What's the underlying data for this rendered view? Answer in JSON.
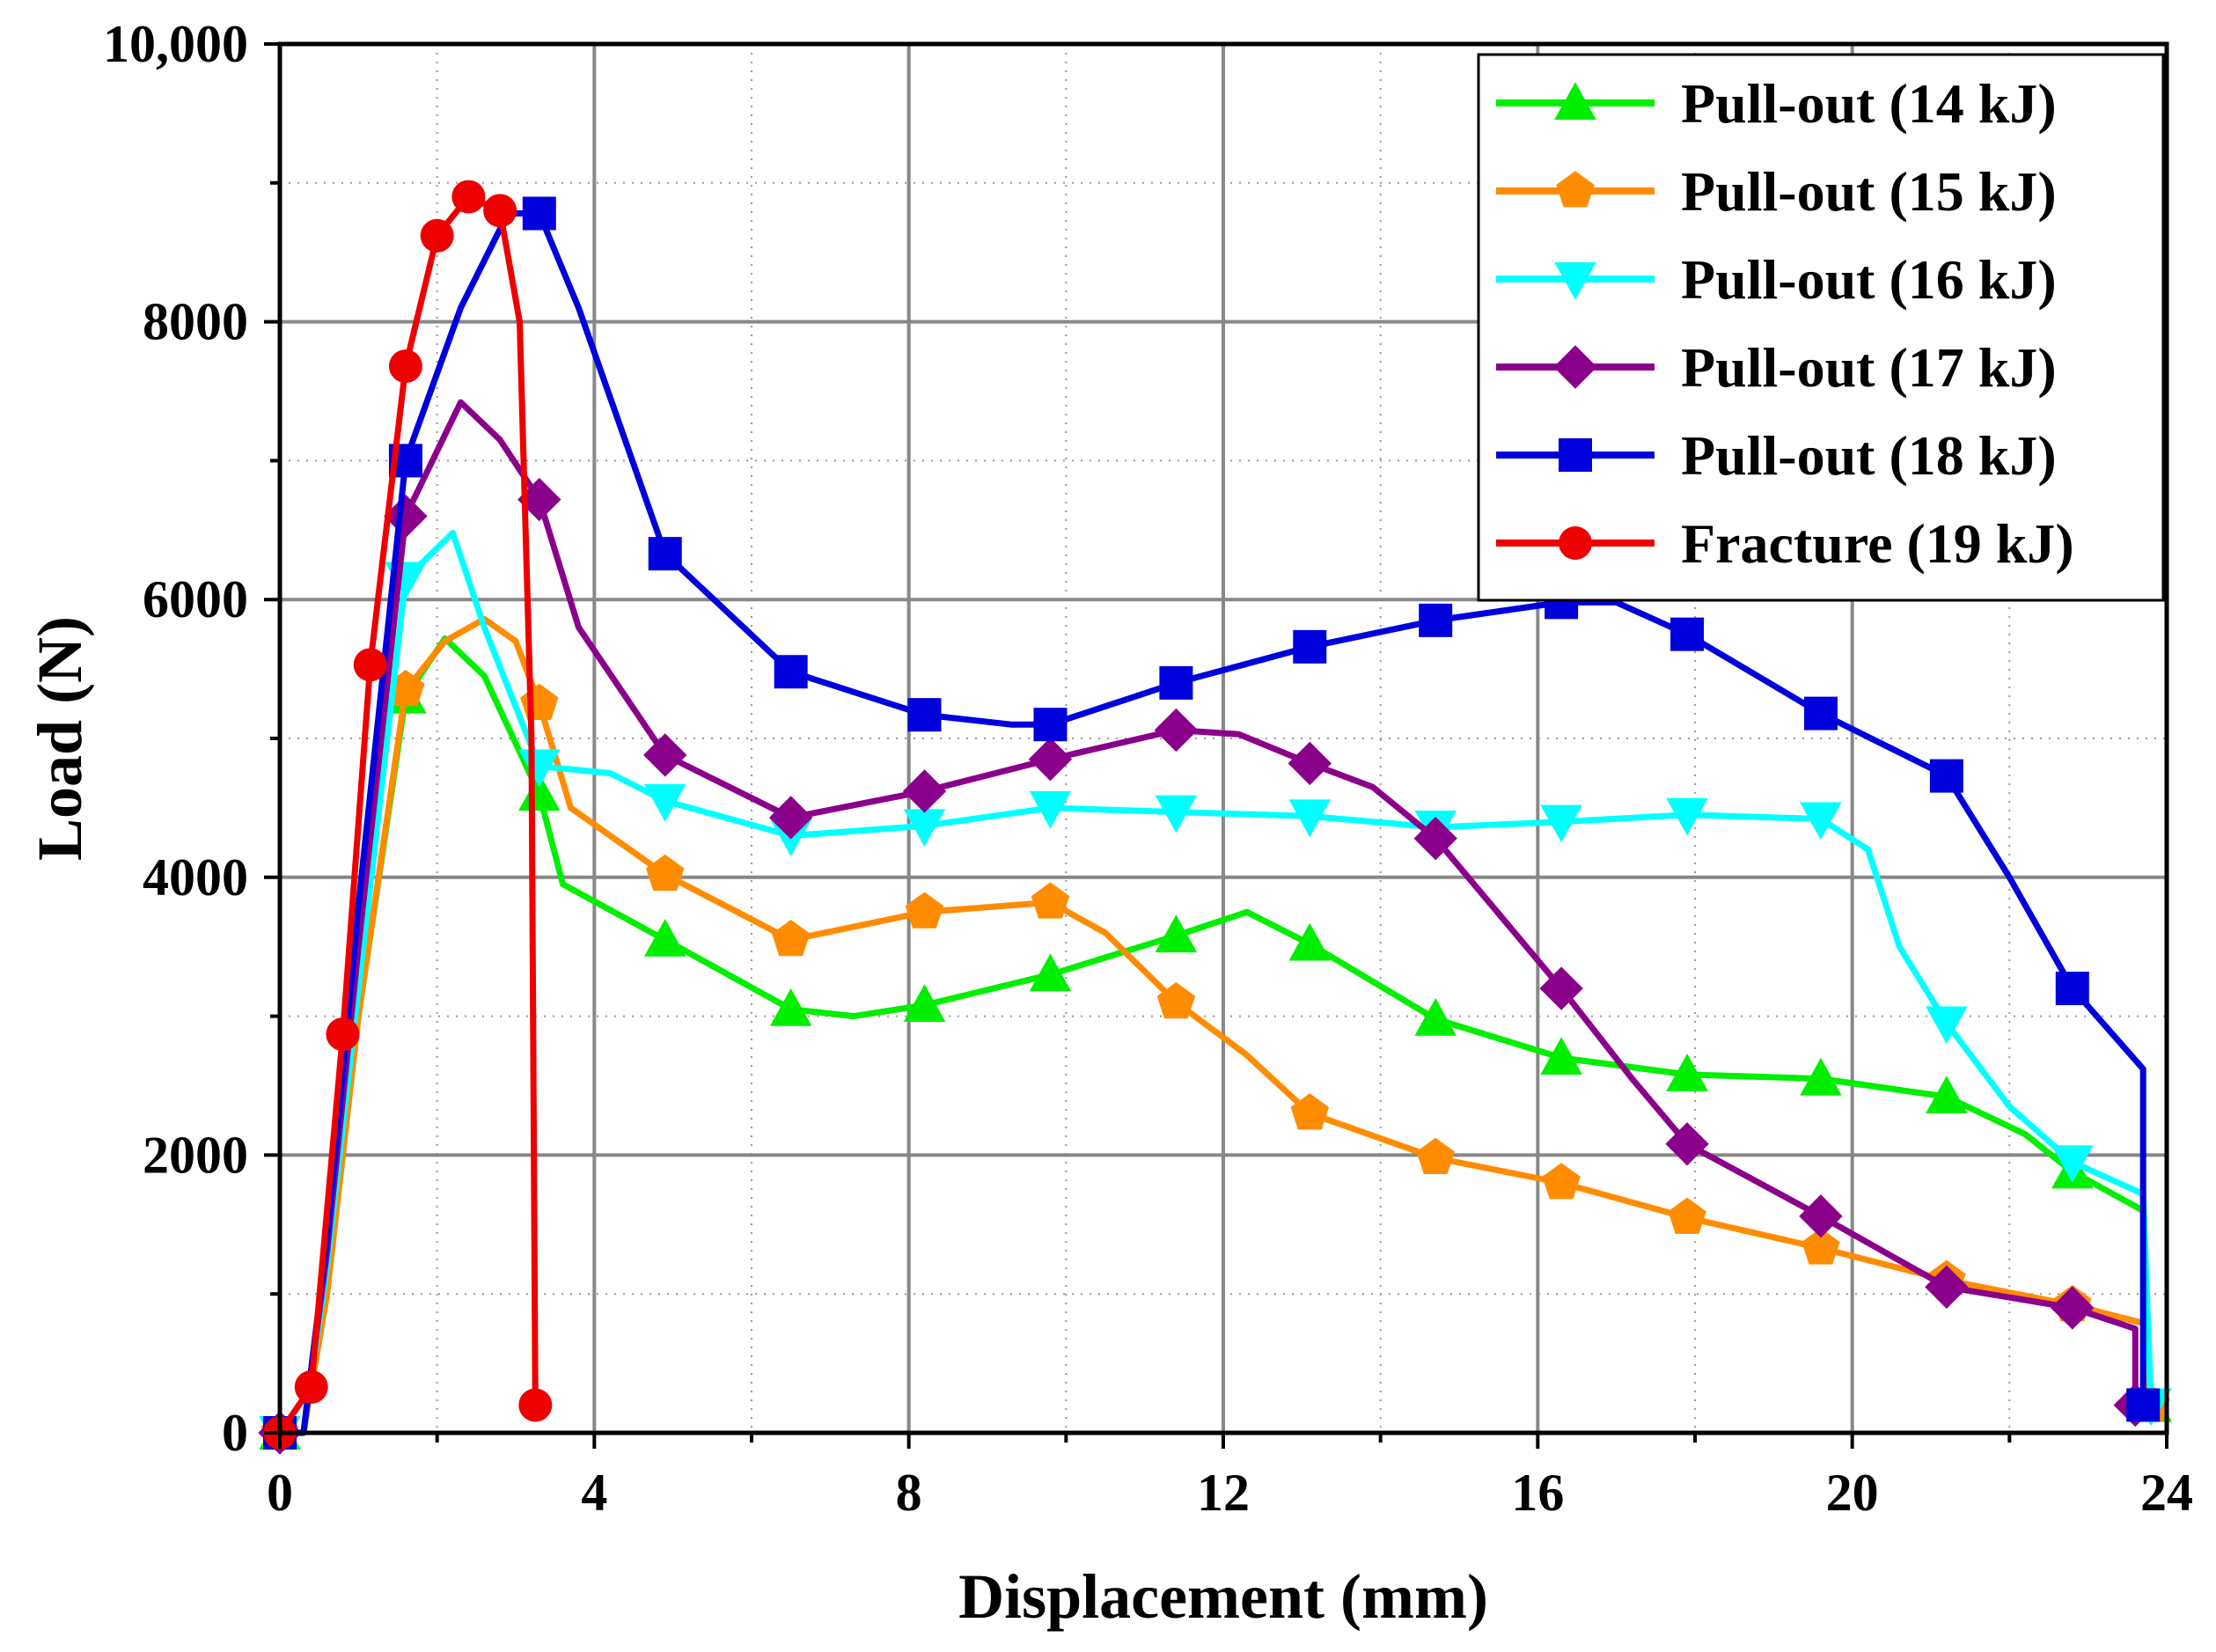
{
  "chart_data": {
    "type": "line",
    "title": "",
    "xlabel": "Displacement (mm)",
    "ylabel": "Load (N)",
    "xlim": [
      0,
      24
    ],
    "ylim": [
      0,
      10000
    ],
    "xticks": [
      0,
      4,
      8,
      12,
      16,
      20,
      24
    ],
    "xtick_labels": [
      "0",
      "4",
      "8",
      "12",
      "16",
      "20",
      "24"
    ],
    "yticks": [
      0,
      2000,
      4000,
      6000,
      8000,
      10000
    ],
    "ytick_labels": [
      "0",
      "2000",
      "4000",
      "6000",
      "8000",
      "10,000"
    ],
    "grid": true,
    "legend_position": "top-right",
    "series": [
      {
        "name": "Pull-out (14 kJ)",
        "color": "#00ee00",
        "marker": "triangle-up",
        "line": [
          [
            0,
            0
          ],
          [
            0.3,
            0
          ],
          [
            0.6,
            1000
          ],
          [
            1.0,
            3000
          ],
          [
            1.6,
            5300
          ],
          [
            2.1,
            5720
          ],
          [
            2.6,
            5450
          ],
          [
            3.3,
            4600
          ],
          [
            3.6,
            3950
          ],
          [
            4.9,
            3550
          ],
          [
            6.5,
            3050
          ],
          [
            7.3,
            3000
          ],
          [
            8.2,
            3080
          ],
          [
            9.8,
            3300
          ],
          [
            11.4,
            3580
          ],
          [
            12.3,
            3750
          ],
          [
            13.1,
            3520
          ],
          [
            14.7,
            2980
          ],
          [
            16.3,
            2700
          ],
          [
            17.9,
            2580
          ],
          [
            19.6,
            2550
          ],
          [
            21.2,
            2420
          ],
          [
            22.2,
            2150
          ],
          [
            22.8,
            1880
          ],
          [
            23.7,
            1600
          ],
          [
            23.8,
            200
          ]
        ],
        "markers": [
          [
            0,
            0
          ],
          [
            1.6,
            5300
          ],
          [
            3.3,
            4600
          ],
          [
            4.9,
            3550
          ],
          [
            6.5,
            3050
          ],
          [
            8.2,
            3080
          ],
          [
            9.8,
            3300
          ],
          [
            11.4,
            3580
          ],
          [
            13.1,
            3520
          ],
          [
            14.7,
            2980
          ],
          [
            16.3,
            2700
          ],
          [
            17.9,
            2580
          ],
          [
            19.6,
            2550
          ],
          [
            21.2,
            2420
          ],
          [
            22.8,
            1880
          ],
          [
            23.8,
            200
          ]
        ]
      },
      {
        "name": "Pull-out (15 kJ)",
        "color": "#ff8c00",
        "marker": "pentagon",
        "line": [
          [
            0,
            0
          ],
          [
            0.3,
            0
          ],
          [
            0.6,
            1000
          ],
          [
            1.0,
            3000
          ],
          [
            1.6,
            5350
          ],
          [
            2.1,
            5700
          ],
          [
            2.6,
            5860
          ],
          [
            3.0,
            5700
          ],
          [
            3.3,
            5250
          ],
          [
            3.7,
            4500
          ],
          [
            4.9,
            4020
          ],
          [
            6.5,
            3550
          ],
          [
            8.2,
            3750
          ],
          [
            9.8,
            3820
          ],
          [
            10.5,
            3600
          ],
          [
            11.4,
            3100
          ],
          [
            12.3,
            2720
          ],
          [
            13.1,
            2300
          ],
          [
            14.7,
            1980
          ],
          [
            16.3,
            1800
          ],
          [
            17.9,
            1550
          ],
          [
            19.6,
            1330
          ],
          [
            21.2,
            1100
          ],
          [
            22.8,
            920
          ],
          [
            23.7,
            790
          ],
          [
            23.8,
            200
          ]
        ],
        "markers": [
          [
            0,
            0
          ],
          [
            1.6,
            5350
          ],
          [
            3.3,
            5250
          ],
          [
            4.9,
            4020
          ],
          [
            6.5,
            3550
          ],
          [
            8.2,
            3750
          ],
          [
            9.8,
            3820
          ],
          [
            11.4,
            3100
          ],
          [
            13.1,
            2300
          ],
          [
            14.7,
            1980
          ],
          [
            16.3,
            1800
          ],
          [
            17.9,
            1550
          ],
          [
            19.6,
            1330
          ],
          [
            21.2,
            1100
          ],
          [
            22.8,
            920
          ],
          [
            23.8,
            200
          ]
        ]
      },
      {
        "name": "Pull-out (16 kJ)",
        "color": "#00ffff",
        "marker": "triangle-down",
        "line": [
          [
            0,
            0
          ],
          [
            0.3,
            0
          ],
          [
            0.6,
            1200
          ],
          [
            1.0,
            3200
          ],
          [
            1.6,
            6150
          ],
          [
            2.2,
            6480
          ],
          [
            2.6,
            5800
          ],
          [
            3.3,
            4800
          ],
          [
            4.2,
            4750
          ],
          [
            4.9,
            4550
          ],
          [
            6.5,
            4300
          ],
          [
            8.2,
            4370
          ],
          [
            9.8,
            4500
          ],
          [
            11.4,
            4470
          ],
          [
            13.1,
            4440
          ],
          [
            14.7,
            4360
          ],
          [
            16.3,
            4400
          ],
          [
            17.9,
            4450
          ],
          [
            19.6,
            4420
          ],
          [
            20.2,
            4200
          ],
          [
            20.6,
            3500
          ],
          [
            21.2,
            2950
          ],
          [
            22.0,
            2350
          ],
          [
            22.8,
            1950
          ],
          [
            23.7,
            1720
          ],
          [
            23.8,
            200
          ]
        ],
        "markers": [
          [
            0,
            0
          ],
          [
            1.6,
            6150
          ],
          [
            3.3,
            4800
          ],
          [
            4.9,
            4550
          ],
          [
            6.5,
            4300
          ],
          [
            8.2,
            4370
          ],
          [
            9.8,
            4500
          ],
          [
            11.4,
            4470
          ],
          [
            13.1,
            4440
          ],
          [
            14.7,
            4360
          ],
          [
            16.3,
            4400
          ],
          [
            17.9,
            4450
          ],
          [
            19.6,
            4420
          ],
          [
            21.2,
            2950
          ],
          [
            22.8,
            1950
          ],
          [
            23.8,
            200
          ]
        ]
      },
      {
        "name": "Pull-out (17 kJ)",
        "color": "#8b008b",
        "marker": "diamond",
        "line": [
          [
            0,
            0
          ],
          [
            0.3,
            0
          ],
          [
            0.6,
            1300
          ],
          [
            1.0,
            3500
          ],
          [
            1.6,
            6600
          ],
          [
            2.3,
            7420
          ],
          [
            2.8,
            7150
          ],
          [
            3.3,
            6720
          ],
          [
            3.8,
            5800
          ],
          [
            4.9,
            4880
          ],
          [
            6.5,
            4430
          ],
          [
            8.2,
            4620
          ],
          [
            9.8,
            4850
          ],
          [
            11.4,
            5060
          ],
          [
            12.2,
            5030
          ],
          [
            13.1,
            4820
          ],
          [
            13.9,
            4650
          ],
          [
            14.7,
            4280
          ],
          [
            16.3,
            3200
          ],
          [
            17.2,
            2550
          ],
          [
            17.9,
            2080
          ],
          [
            19.6,
            1560
          ],
          [
            21.2,
            1050
          ],
          [
            22.8,
            900
          ],
          [
            23.6,
            750
          ],
          [
            23.6,
            200
          ]
        ],
        "markers": [
          [
            0,
            0
          ],
          [
            1.6,
            6600
          ],
          [
            3.3,
            6720
          ],
          [
            4.9,
            4880
          ],
          [
            6.5,
            4430
          ],
          [
            8.2,
            4620
          ],
          [
            9.8,
            4850
          ],
          [
            11.4,
            5060
          ],
          [
            13.1,
            4820
          ],
          [
            14.7,
            4280
          ],
          [
            16.3,
            3200
          ],
          [
            17.9,
            2080
          ],
          [
            19.6,
            1560
          ],
          [
            21.2,
            1050
          ],
          [
            22.8,
            900
          ],
          [
            23.6,
            200
          ]
        ]
      },
      {
        "name": "Pull-out (18 kJ)",
        "color": "#0000dd",
        "marker": "square",
        "line": [
          [
            0,
            0
          ],
          [
            0.3,
            0
          ],
          [
            0.6,
            1400
          ],
          [
            1.0,
            3800
          ],
          [
            1.6,
            7000
          ],
          [
            2.3,
            8100
          ],
          [
            2.9,
            8780
          ],
          [
            3.3,
            8780
          ],
          [
            3.8,
            8100
          ],
          [
            4.9,
            6330
          ],
          [
            6.5,
            5480
          ],
          [
            8.2,
            5170
          ],
          [
            9.3,
            5100
          ],
          [
            9.8,
            5100
          ],
          [
            11.4,
            5400
          ],
          [
            13.1,
            5660
          ],
          [
            14.7,
            5850
          ],
          [
            16.3,
            5980
          ],
          [
            17.0,
            5980
          ],
          [
            17.9,
            5750
          ],
          [
            19.6,
            5180
          ],
          [
            21.2,
            4730
          ],
          [
            22.0,
            4000
          ],
          [
            22.8,
            3200
          ],
          [
            23.7,
            2620
          ],
          [
            23.7,
            200
          ]
        ],
        "markers": [
          [
            0,
            0
          ],
          [
            1.6,
            7000
          ],
          [
            3.3,
            8780
          ],
          [
            4.9,
            6330
          ],
          [
            6.5,
            5480
          ],
          [
            8.2,
            5170
          ],
          [
            9.8,
            5100
          ],
          [
            11.4,
            5400
          ],
          [
            13.1,
            5660
          ],
          [
            14.7,
            5850
          ],
          [
            16.3,
            5980
          ],
          [
            17.9,
            5750
          ],
          [
            19.6,
            5180
          ],
          [
            21.2,
            4730
          ],
          [
            22.8,
            3200
          ],
          [
            23.7,
            200
          ]
        ]
      },
      {
        "name": "Fracture (19 kJ)",
        "color": "#ee0000",
        "marker": "circle",
        "line": [
          [
            0,
            0
          ],
          [
            0.4,
            330
          ],
          [
            0.8,
            2870
          ],
          [
            1.15,
            5530
          ],
          [
            1.6,
            7680
          ],
          [
            2.0,
            8620
          ],
          [
            2.4,
            8900
          ],
          [
            2.8,
            8800
          ],
          [
            3.05,
            8000
          ],
          [
            3.2,
            5000
          ],
          [
            3.25,
            200
          ]
        ],
        "markers": [
          [
            0,
            0
          ],
          [
            0.4,
            330
          ],
          [
            0.8,
            2870
          ],
          [
            1.15,
            5530
          ],
          [
            1.6,
            7680
          ],
          [
            2.0,
            8620
          ],
          [
            2.4,
            8900
          ],
          [
            2.8,
            8800
          ],
          [
            3.25,
            200
          ]
        ]
      }
    ]
  }
}
